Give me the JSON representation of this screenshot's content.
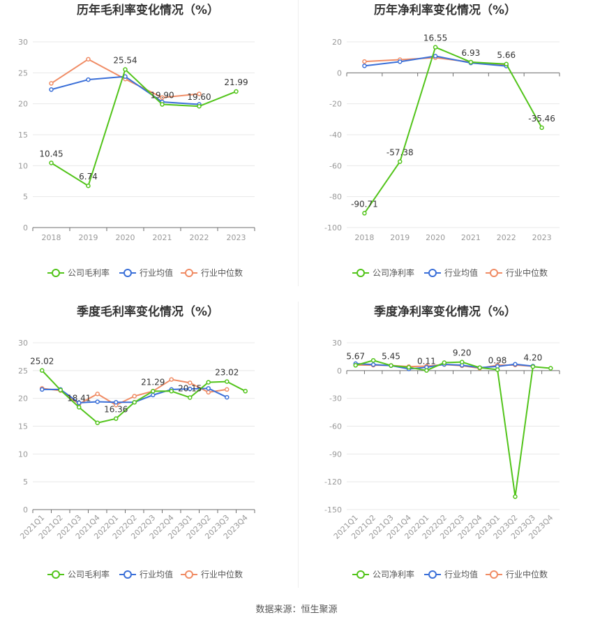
{
  "source_prefix": "数据来源：",
  "source_name": "恒生聚源",
  "legend_labels": {
    "gross": [
      "公司毛利率",
      "行业均值",
      "行业中位数"
    ],
    "net": [
      "公司净利率",
      "行业均值",
      "行业中位数"
    ]
  },
  "colors": {
    "company": "#52c41a",
    "mean": "#3a6fd8",
    "median": "#f08c65",
    "grid": "#e8e8e8",
    "axis": "#999999",
    "title": "#333333"
  },
  "chart_data": [
    {
      "type": "line",
      "title": "历年毛利率变化情况（%）",
      "categories": [
        "2018",
        "2019",
        "2020",
        "2021",
        "2022",
        "2023"
      ],
      "ylim": [
        0,
        30
      ],
      "yticks": [
        0,
        5,
        10,
        15,
        20,
        25,
        30
      ],
      "series": [
        {
          "name": "公司毛利率",
          "values": [
            10.45,
            6.74,
            25.54,
            19.9,
            19.6,
            21.99
          ],
          "labels": [
            "10.45",
            "6.74",
            "25.54",
            "19.90",
            "19.60",
            "21.99"
          ]
        },
        {
          "name": "行业均值",
          "values": [
            22.3,
            23.9,
            24.4,
            20.3,
            19.9,
            null
          ]
        },
        {
          "name": "行业中位数",
          "values": [
            23.3,
            27.2,
            24.0,
            21.0,
            21.6,
            null
          ]
        }
      ]
    },
    {
      "type": "line",
      "title": "历年净利率变化情况（%）",
      "categories": [
        "2018",
        "2019",
        "2020",
        "2021",
        "2022",
        "2023"
      ],
      "ylim": [
        -100,
        20
      ],
      "yticks": [
        -100,
        -80,
        -60,
        -40,
        -20,
        0,
        20
      ],
      "series": [
        {
          "name": "公司净利率",
          "values": [
            -90.71,
            -57.38,
            16.55,
            6.93,
            5.66,
            -35.46
          ],
          "labels": [
            "-90.71",
            "-57.38",
            "16.55",
            "6.93",
            "5.66",
            "-35.46"
          ]
        },
        {
          "name": "行业均值",
          "values": [
            4.5,
            7.2,
            10.8,
            6.4,
            4.4,
            null
          ]
        },
        {
          "name": "行业中位数",
          "values": [
            7.3,
            8.5,
            9.8,
            6.9,
            5.3,
            null
          ]
        }
      ]
    },
    {
      "type": "line",
      "title": "季度毛利率变化情况（%）",
      "categories": [
        "2021Q1",
        "2021Q2",
        "2021Q3",
        "2021Q4",
        "2022Q1",
        "2022Q2",
        "2022Q3",
        "2022Q4",
        "2023Q1",
        "2023Q2",
        "2023Q3",
        "2023Q4"
      ],
      "ylim": [
        0,
        30
      ],
      "yticks": [
        0,
        5,
        10,
        15,
        20,
        25,
        30
      ],
      "series": [
        {
          "name": "公司毛利率",
          "values": [
            25.02,
            21.5,
            18.41,
            15.6,
            16.36,
            19.3,
            21.29,
            21.3,
            20.15,
            22.9,
            23.02,
            21.3
          ],
          "labels": [
            "25.02",
            "",
            "18.41",
            "",
            "16.36",
            "",
            "21.29",
            "",
            "20.15",
            "",
            "23.02",
            ""
          ]
        },
        {
          "name": "行业均值",
          "values": [
            21.6,
            21.6,
            19.2,
            19.4,
            19.3,
            19.3,
            20.6,
            21.6,
            21.7,
            21.8,
            20.2,
            null
          ]
        },
        {
          "name": "行业中位数",
          "values": [
            21.8,
            21.4,
            19.0,
            20.8,
            18.8,
            20.4,
            21.3,
            23.4,
            22.8,
            21.1,
            21.6,
            null
          ]
        }
      ]
    },
    {
      "type": "line",
      "title": "季度净利率变化情况（%）",
      "categories": [
        "2021Q1",
        "2021Q2",
        "2021Q3",
        "2021Q4",
        "2022Q1",
        "2022Q2",
        "2022Q3",
        "2022Q4",
        "2023Q1",
        "2023Q2",
        "2023Q3",
        "2023Q4"
      ],
      "ylim": [
        -150,
        30
      ],
      "yticks": [
        -150,
        -120,
        -90,
        -60,
        -30,
        0,
        30
      ],
      "series": [
        {
          "name": "公司净利率",
          "values": [
            5.67,
            11.0,
            5.45,
            3.5,
            0.11,
            8.5,
            9.2,
            3.2,
            0.98,
            -136.0,
            4.2,
            2.5
          ],
          "labels": [
            "5.67",
            "",
            "5.45",
            "",
            "0.11",
            "",
            "9.20",
            "",
            "0.98",
            "",
            "4.20",
            ""
          ]
        },
        {
          "name": "行业均值",
          "values": [
            7.5,
            6.5,
            5.3,
            1.8,
            3.5,
            6.7,
            5.8,
            3.2,
            4.5,
            6.8,
            4.8,
            null
          ]
        },
        {
          "name": "行业中位数",
          "values": [
            6.0,
            5.8,
            5.5,
            4.3,
            4.8,
            6.5,
            5.2,
            2.5,
            5.8,
            6.0,
            4.6,
            null
          ]
        }
      ]
    }
  ]
}
